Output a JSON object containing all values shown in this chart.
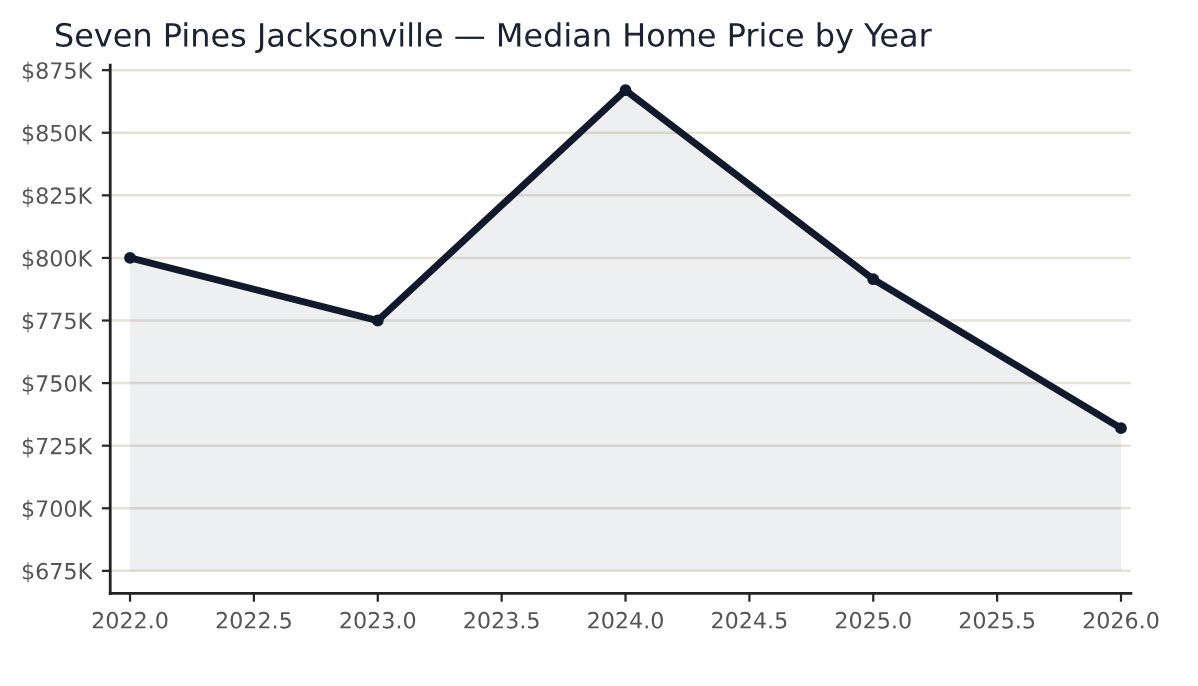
{
  "chart_data": {
    "type": "area",
    "title": "Seven Pines Jacksonville — Median Home Price by Year",
    "x": [
      2022,
      2023,
      2024,
      2025,
      2026
    ],
    "series": [
      {
        "color": "#111a2c",
        "values": [
          800,
          775,
          867,
          791.5,
          732
        ]
      }
    ],
    "xlim": [
      2021.92,
      2026.04
    ],
    "xticks": [
      {
        "value": 2022,
        "label": "2022.0"
      },
      2022.5,
      {
        "value": 2023,
        "label": "2023.0"
      },
      2023.5,
      {
        "value": 2024,
        "label": "2024.0"
      },
      2024.5,
      {
        "value": 2025,
        "label": "2025.0"
      },
      2025.5,
      {
        "value": 2026,
        "label": "2026.0"
      }
    ],
    "ylim": [
      666,
      877
    ],
    "yticks": [
      {
        "value": 675,
        "label": "$675K"
      },
      {
        "value": 700,
        "label": "$700K"
      },
      {
        "value": 725,
        "label": "$725K"
      },
      {
        "value": 750,
        "label": "$750K"
      },
      {
        "value": 775,
        "label": "$775K"
      },
      {
        "value": 800,
        "label": "$800K"
      },
      {
        "value": 825,
        "label": "$825K"
      },
      {
        "value": 850,
        "label": "$850K"
      },
      {
        "value": 875,
        "label": "$875K"
      }
    ],
    "grid": "y",
    "marker": "circle",
    "line_style": "solid"
  }
}
